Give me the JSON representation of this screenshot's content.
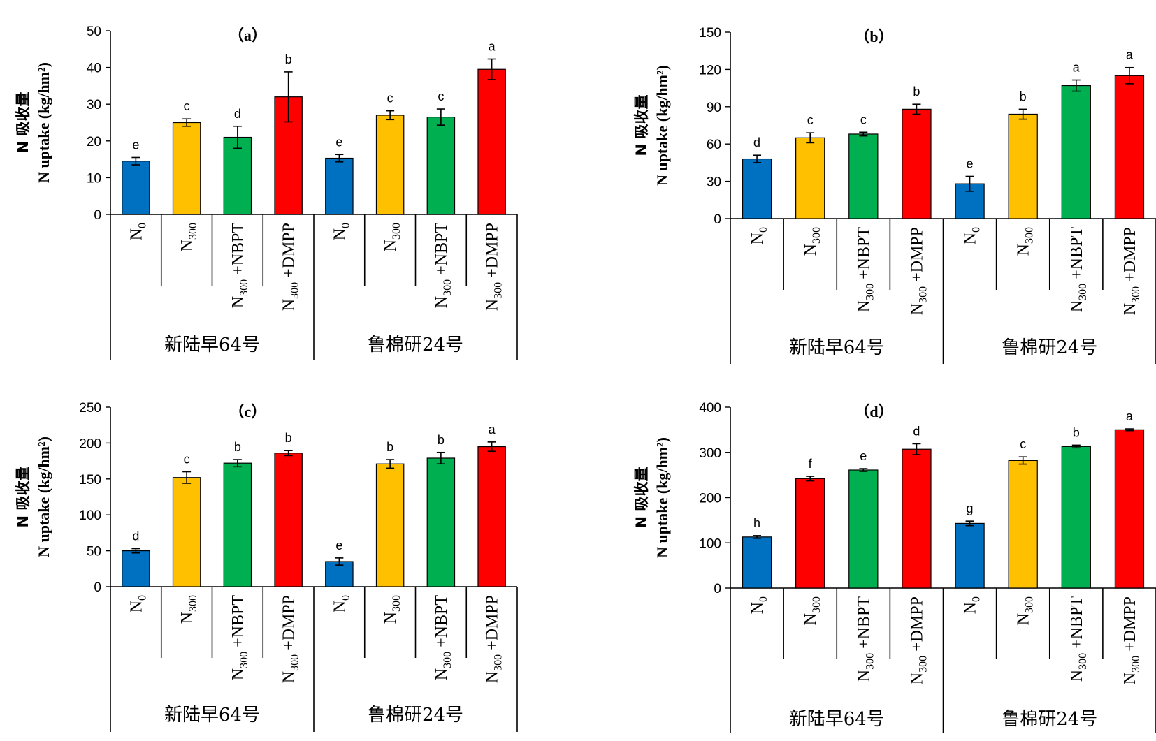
{
  "chart_data": [
    {
      "type": "bar",
      "title": "（a）",
      "ylabel_cn": "N 吸收量",
      "ylabel_en": "N uptake (kg/hm²)",
      "ylim": [
        0,
        50
      ],
      "yticks": [
        0,
        10,
        20,
        30,
        40,
        50
      ],
      "groups": [
        "新陆早64号",
        "鲁棉研24号"
      ],
      "categories": [
        "N0",
        "N300",
        "N300+NBPT",
        "N300+DMPP",
        "N0",
        "N300",
        "N300+NBPT",
        "N300+DMPP"
      ],
      "values": [
        14.5,
        25.0,
        21.0,
        32.0,
        15.3,
        27.0,
        26.5,
        39.5
      ],
      "errors": [
        1.0,
        1.0,
        3.0,
        6.8,
        1.0,
        1.2,
        2.2,
        2.8
      ],
      "sig": [
        "e",
        "c",
        "d",
        "b",
        "e",
        "c",
        "c",
        "a"
      ],
      "colors": [
        "#0070c0",
        "#ffc000",
        "#00b050",
        "#ff0000",
        "#0070c0",
        "#ffc000",
        "#00b050",
        "#ff0000"
      ]
    },
    {
      "type": "bar",
      "title": "（b）",
      "ylabel_cn": "N 吸收量",
      "ylabel_en": "N uptake (kg/hm²)",
      "ylim": [
        0,
        150
      ],
      "yticks": [
        0,
        30,
        60,
        90,
        120,
        150
      ],
      "groups": [
        "新陆早64号",
        "鲁棉研24号"
      ],
      "categories": [
        "N0",
        "N300",
        "N300+NBPT",
        "N300+DMPP",
        "N0",
        "N300",
        "N300+NBPT",
        "N300+DMPP"
      ],
      "values": [
        48,
        65,
        68,
        88,
        28,
        84,
        107,
        115
      ],
      "errors": [
        3,
        4,
        1.5,
        4,
        6,
        4,
        4.5,
        6.5
      ],
      "sig": [
        "d",
        "c",
        "c",
        "b",
        "e",
        "b",
        "a",
        "a"
      ],
      "colors": [
        "#0070c0",
        "#ffc000",
        "#00b050",
        "#ff0000",
        "#0070c0",
        "#ffc000",
        "#00b050",
        "#ff0000"
      ]
    },
    {
      "type": "bar",
      "title": "（c）",
      "ylabel_cn": "N 吸收量",
      "ylabel_en": "N uptake (kg/hm²)",
      "ylim": [
        0,
        250
      ],
      "yticks": [
        0,
        50,
        100,
        150,
        200,
        250
      ],
      "groups": [
        "新陆早64号",
        "鲁棉研24号"
      ],
      "categories": [
        "N0",
        "N300",
        "N300+NBPT",
        "N300+DMPP",
        "N0",
        "N300",
        "N300+NBPT",
        "N300+DMPP"
      ],
      "values": [
        50,
        152,
        172,
        186,
        35,
        171,
        179,
        195
      ],
      "errors": [
        3,
        8,
        5,
        3.5,
        5,
        6,
        8,
        6.5
      ],
      "sig": [
        "d",
        "c",
        "b",
        "b",
        "e",
        "b",
        "b",
        "a"
      ],
      "colors": [
        "#0070c0",
        "#ffc000",
        "#00b050",
        "#ff0000",
        "#0070c0",
        "#ffc000",
        "#00b050",
        "#ff0000"
      ]
    },
    {
      "type": "bar",
      "title": "（d）",
      "ylabel_cn": "N 吸收量",
      "ylabel_en": "N uptake (kg/hm²)",
      "ylim": [
        0,
        400
      ],
      "yticks": [
        0,
        100,
        200,
        300,
        400
      ],
      "groups": [
        "新陆早64号",
        "鲁棉研24号"
      ],
      "categories": [
        "N0",
        "N300",
        "N300+NBPT",
        "N300+DMPP",
        "N0",
        "N300",
        "N300+NBPT",
        "N300+DMPP"
      ],
      "values": [
        113,
        242,
        261,
        307,
        143,
        282,
        313,
        350
      ],
      "errors": [
        3,
        5,
        3,
        12,
        5,
        8,
        3,
        2
      ],
      "sig": [
        "h",
        "f",
        "e",
        "d",
        "g",
        "c",
        "b",
        "a"
      ],
      "colors": [
        "#0070c0",
        "#ff0000",
        "#00b050",
        "#ff0000",
        "#0070c0",
        "#ffc000",
        "#00b050",
        "#ff0000"
      ]
    }
  ]
}
